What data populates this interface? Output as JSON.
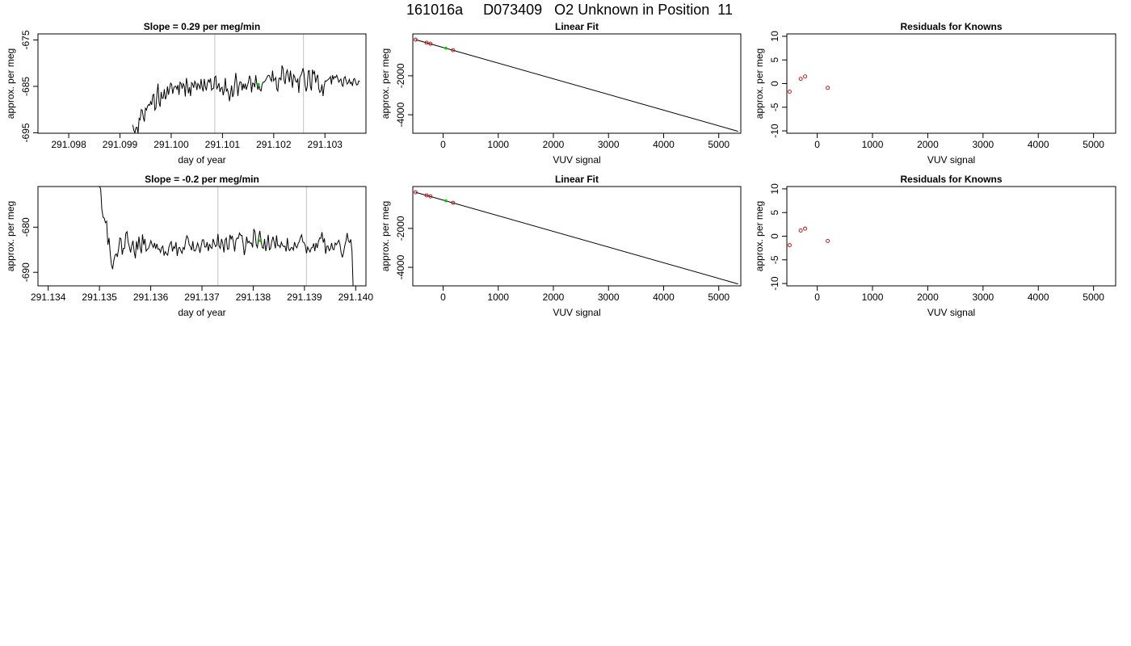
{
  "title": "161016a     D073409   O2 Unknown in Position  11",
  "colors": {
    "line": "#000000",
    "residual_points": "#cc0000",
    "unknown_point": "#00cc00",
    "gate_lines": "#cccccc"
  },
  "chart_data": [
    {
      "id": "timeseries-1",
      "type": "line",
      "title": "Slope =  0.29  per meg/min",
      "xlabel": "day of year",
      "ylabel": "approx. per meg",
      "xlim": [
        291.0974,
        291.1038
      ],
      "ylim": [
        -695.1,
        -673.7
      ],
      "xticks": [
        291.098,
        291.099,
        291.1,
        291.101,
        291.102,
        291.103
      ],
      "xtick_labels": [
        "291.098",
        "291.099",
        "291.100",
        "291.101",
        "291.102",
        "291.103"
      ],
      "yticks": [
        -695,
        -685,
        -675
      ],
      "ytick_labels": [
        "-695",
        "-685",
        "-675"
      ],
      "gate_lines_x": [
        291.10085,
        291.10258
      ],
      "unknown_point": {
        "x": 291.1017,
        "y": -684.6
      },
      "series": [
        {
          "x_start": 291.09925,
          "x_end": 291.10368,
          "values": [
            -693.3,
            -694.5,
            -695.0,
            -693.9,
            -693.8,
            -695.1,
            -691.9,
            -692.2,
            -690.0,
            -690.1,
            -691.7,
            -692.6,
            -689.7,
            -690.1,
            -689.3,
            -688.9,
            -689.1,
            -688.3,
            -689.0,
            -686.9,
            -686.7,
            -690.1,
            -689.7,
            -686.6,
            -684.4,
            -688.5,
            -689.4,
            -686.2,
            -687.6,
            -687.5,
            -685.6,
            -687.8,
            -687.1,
            -685.0,
            -686.8,
            -685.5,
            -684.3,
            -684.6,
            -686.6,
            -685.4,
            -685.0,
            -685.0,
            -685.6,
            -684.7,
            -686.8,
            -684.1,
            -684.4,
            -685.5,
            -684.4,
            -684.9,
            -687.2,
            -683.2,
            -684.6,
            -686.5,
            -685.2,
            -687.1,
            -684.2,
            -684.5,
            -685.3,
            -683.9,
            -684.4,
            -685.8,
            -684.4,
            -684.8,
            -685.6,
            -683.4,
            -685.2,
            -686.1,
            -683.4,
            -685.0,
            -685.9,
            -684.3,
            -683.6,
            -684.1,
            -683.3,
            -685.8,
            -685.5,
            -685.4,
            -683.0,
            -682.8,
            -685.5,
            -685.1,
            -684.3,
            -686.2,
            -685.4,
            -685.2,
            -686.9,
            -685.8,
            -683.2,
            -686.1,
            -685.6,
            -686.6,
            -688.2,
            -686.5,
            -684.8,
            -687.3,
            -686.5,
            -684.3,
            -682.1,
            -684.4,
            -687.1,
            -684.9,
            -684.0,
            -684.1,
            -685.9,
            -684.4,
            -685.5,
            -684.4,
            -685.7,
            -684.9,
            -684.1,
            -682.7,
            -683.4,
            -686.3,
            -684.3,
            -684.4,
            -685.2,
            -682.6,
            -684.4,
            -685.7,
            -684.8,
            -685.7,
            -686.0,
            -684.6,
            -684.1,
            -684.1,
            -683.8,
            -683.4,
            -682.9,
            -682.6,
            -682.7,
            -683.4,
            -683.9,
            -681.6,
            -683.8,
            -683.5,
            -683.1,
            -685.6,
            -686.0,
            -683.3,
            -683.2,
            -683.7,
            -680.5,
            -681.2,
            -683.7,
            -684.5,
            -682.1,
            -681.5,
            -682.8,
            -684.1,
            -681.6,
            -683.5,
            -685.3,
            -682.5,
            -682.9,
            -683.9,
            -684.1,
            -683.3,
            -686.4,
            -683.0,
            -682.6,
            -682.0,
            -681.1,
            -682.3,
            -684.8,
            -686.1,
            -685.0,
            -681.7,
            -681.6,
            -684.9,
            -685.9,
            -681.4,
            -682.3,
            -681.8,
            -684.2,
            -683.1,
            -682.5,
            -685.5,
            -686.3,
            -686.0,
            -684.6,
            -687.1,
            -685.0,
            -683.8,
            -683.9,
            -683.7,
            -683.5,
            -683.3,
            -682.9,
            -684.6,
            -682.6,
            -683.4,
            -682.9,
            -683.1,
            -682.6,
            -683.3,
            -684.1,
            -683.7,
            -683.4,
            -684.7,
            -685.0,
            -683.2,
            -682.9,
            -683.8,
            -684.5,
            -684.2,
            -683.5,
            -684.4,
            -684.1,
            -684.9,
            -683.5,
            -683.3,
            -684.1,
            -684.7,
            -684.6,
            -683.8,
            -684.0
          ]
        }
      ]
    },
    {
      "id": "linear-fit-1",
      "type": "scatter",
      "title": "Linear Fit",
      "xlabel": "VUV signal",
      "ylabel": "approx. per meg",
      "xlim": [
        -550,
        5400
      ],
      "ylim": [
        -4950,
        150
      ],
      "xticks": [
        0,
        1000,
        2000,
        3000,
        4000,
        5000
      ],
      "xtick_labels": [
        "0",
        "1000",
        "2000",
        "3000",
        "4000",
        "5000"
      ],
      "yticks": [
        -4000,
        -2000
      ],
      "ytick_labels": [
        "-4000",
        "-2000"
      ],
      "fit_line": [
        [
          -500,
          -144
        ],
        [
          5350,
          -4850
        ]
      ],
      "knowns": [
        {
          "x": -500,
          "y": -145
        },
        {
          "x": -300,
          "y": -302
        },
        {
          "x": -230,
          "y": -357
        },
        {
          "x": 180,
          "y": -685
        }
      ],
      "unknown": [
        {
          "x": 50,
          "y": -582
        }
      ]
    },
    {
      "id": "residuals-1",
      "type": "scatter",
      "title": "Residuals for Knowns",
      "xlabel": "VUV signal",
      "ylabel": "approx. per meg",
      "xlim": [
        -550,
        5400
      ],
      "ylim": [
        -10.5,
        10.5
      ],
      "xticks": [
        0,
        1000,
        2000,
        3000,
        4000,
        5000
      ],
      "xtick_labels": [
        "0",
        "1000",
        "2000",
        "3000",
        "4000",
        "5000"
      ],
      "yticks": [
        -10,
        -5,
        0,
        5,
        10
      ],
      "ytick_labels": [
        "-10",
        "-5",
        "0",
        "5",
        "10"
      ],
      "points": [
        {
          "x": -500,
          "y": -1.7
        },
        {
          "x": -300,
          "y": 1.0
        },
        {
          "x": -220,
          "y": 1.5
        },
        {
          "x": 190,
          "y": -0.9
        }
      ]
    },
    {
      "id": "timeseries-2",
      "type": "line",
      "title": "Slope =  -0.2  per meg/min",
      "xlabel": "day of year",
      "ylabel": "approx. per meg",
      "xlim": [
        291.1338,
        291.1402
      ],
      "ylim": [
        -693.0,
        -671.0
      ],
      "xticks": [
        291.134,
        291.135,
        291.136,
        291.137,
        291.138,
        291.139,
        291.14
      ],
      "xtick_labels": [
        "291.134",
        "291.135",
        "291.136",
        "291.137",
        "291.138",
        "291.139",
        "291.140"
      ],
      "yticks": [
        -690,
        -680
      ],
      "ytick_labels": [
        "-690",
        "-680"
      ],
      "gate_lines_x": [
        291.13731,
        291.13904
      ],
      "unknown_point": {
        "x": 291.13814,
        "y": -683.0
      },
      "series": [
        {
          "x_start": 291.135,
          "x_end": 291.13995,
          "values": [
            -671.0,
            -671.5,
            -676.1,
            -677.8,
            -678.0,
            -679.0,
            -678.7,
            -683.9,
            -682.4,
            -685.9,
            -688.3,
            -689.3,
            -687.4,
            -686.2,
            -685.9,
            -686.6,
            -684.8,
            -682.4,
            -682.6,
            -686.1,
            -684.7,
            -684.7,
            -681.4,
            -681.0,
            -683.4,
            -684.4,
            -685.6,
            -684.1,
            -683.0,
            -685.4,
            -686.9,
            -683.1,
            -685.0,
            -682.1,
            -684.5,
            -685.8,
            -681.6,
            -683.9,
            -682.6,
            -685.3,
            -684.9,
            -684.7,
            -683.9,
            -683.0,
            -683.9,
            -684.5,
            -683.5,
            -684.8,
            -683.7,
            -684.9,
            -684.8,
            -685.6,
            -684.5,
            -684.2,
            -686.3,
            -685.4,
            -685.9,
            -686.2,
            -684.5,
            -683.7,
            -683.2,
            -685.4,
            -684.3,
            -684.7,
            -683.3,
            -686.4,
            -684.6,
            -684.5,
            -685.2,
            -685.8,
            -684.5,
            -684.9,
            -683.0,
            -681.9,
            -682.4,
            -683.9,
            -684.3,
            -685.1,
            -683.1,
            -685.2,
            -685.3,
            -684.6,
            -683.5,
            -684.4,
            -685.7,
            -684.2,
            -682.8,
            -682.8,
            -684.4,
            -684.4,
            -683.3,
            -685.3,
            -683.7,
            -684.5,
            -684.7,
            -682.6,
            -683.5,
            -684.3,
            -684.0,
            -681.5,
            -684.2,
            -684.7,
            -682.6,
            -683.6,
            -685.6,
            -682.8,
            -682.4,
            -684.9,
            -684.8,
            -681.7,
            -682.6,
            -681.9,
            -683.5,
            -685.4,
            -682.9,
            -682.4,
            -682.5,
            -681.3,
            -681.8,
            -681.8,
            -683.6,
            -686.2,
            -684.7,
            -682.1,
            -683.5,
            -683.1,
            -683.6,
            -683.5,
            -684.5,
            -680.4,
            -681.1,
            -683.9,
            -684.5,
            -682.4,
            -680.8,
            -682.8,
            -684.5,
            -684.7,
            -682.6,
            -685.3,
            -683.9,
            -681.7,
            -685.0,
            -684.7,
            -683.2,
            -682.1,
            -683.3,
            -684.7,
            -681.8,
            -684.1,
            -684.0,
            -684.5,
            -683.3,
            -684.0,
            -684.3,
            -684.2,
            -685.4,
            -682.4,
            -684.8,
            -685.2,
            -684.6,
            -684.5,
            -685.1,
            -683.3,
            -684.2,
            -684.6,
            -683.7,
            -683.2,
            -682.2,
            -681.7,
            -683.3,
            -683.4,
            -684.1,
            -685.8,
            -684.4,
            -685.0,
            -685.5,
            -684.6,
            -684.5,
            -683.6,
            -685.3,
            -683.5,
            -684.6,
            -683.2,
            -682.4,
            -682.5,
            -681.1,
            -683.4,
            -682.5,
            -685.9,
            -684.2,
            -684.2,
            -685.2,
            -684.8,
            -683.5,
            -684.9,
            -685.0,
            -683.5,
            -683.9,
            -683.4,
            -682.9,
            -683.8,
            -685.7,
            -686.7,
            -685.6,
            -684.1,
            -683.0,
            -681.3,
            -683.0,
            -683.4,
            -682.7,
            -685.3,
            -693.1
          ]
        }
      ]
    },
    {
      "id": "linear-fit-2",
      "type": "scatter",
      "title": "Linear Fit",
      "xlabel": "VUV signal",
      "ylabel": "approx. per meg",
      "xlim": [
        -550,
        5400
      ],
      "ylim": [
        -4950,
        150
      ],
      "xticks": [
        0,
        1000,
        2000,
        3000,
        4000,
        5000
      ],
      "xtick_labels": [
        "0",
        "1000",
        "2000",
        "3000",
        "4000",
        "5000"
      ],
      "yticks": [
        -4000,
        -2000
      ],
      "ytick_labels": [
        "-4000",
        "-2000"
      ],
      "fit_line": [
        [
          -500,
          -144
        ],
        [
          5350,
          -4850
        ]
      ],
      "knowns": [
        {
          "x": -500,
          "y": -145
        },
        {
          "x": -300,
          "y": -302
        },
        {
          "x": -230,
          "y": -357
        },
        {
          "x": 180,
          "y": -685
        }
      ],
      "unknown": [
        {
          "x": 50,
          "y": -582
        }
      ]
    },
    {
      "id": "residuals-2",
      "type": "scatter",
      "title": "Residuals for Knowns",
      "xlabel": "VUV signal",
      "ylabel": "approx. per meg",
      "xlim": [
        -550,
        5400
      ],
      "ylim": [
        -10.5,
        10.5
      ],
      "xticks": [
        0,
        1000,
        2000,
        3000,
        4000,
        5000
      ],
      "xtick_labels": [
        "0",
        "1000",
        "2000",
        "3000",
        "4000",
        "5000"
      ],
      "yticks": [
        -10,
        -5,
        0,
        5,
        10
      ],
      "ytick_labels": [
        "-10",
        "-5",
        "0",
        "5",
        "10"
      ],
      "points": [
        {
          "x": -500,
          "y": -1.9
        },
        {
          "x": -300,
          "y": 1.2
        },
        {
          "x": -220,
          "y": 1.6
        },
        {
          "x": 190,
          "y": -1.0
        }
      ]
    }
  ]
}
